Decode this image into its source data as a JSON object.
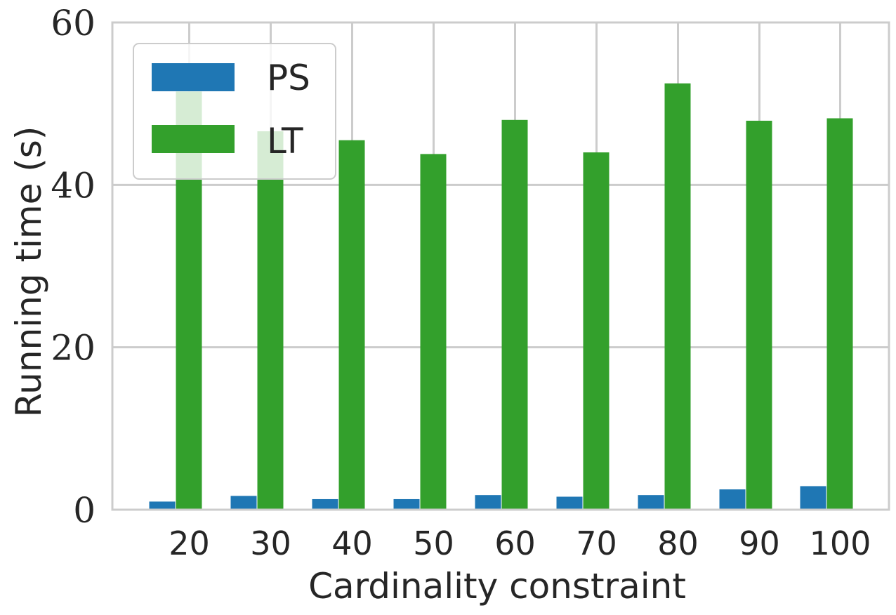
{
  "chart_data": {
    "type": "bar",
    "categories": [
      "20",
      "30",
      "40",
      "50",
      "60",
      "70",
      "80",
      "90",
      "100"
    ],
    "series": [
      {
        "name": "PS",
        "color": "#1f77b4",
        "values": [
          1.0,
          1.7,
          1.3,
          1.3,
          1.8,
          1.6,
          1.8,
          2.5,
          2.9
        ]
      },
      {
        "name": "LT",
        "color": "#33a02c",
        "values": [
          51.5,
          46.6,
          45.5,
          43.8,
          48.0,
          44.0,
          52.5,
          47.9,
          48.2
        ]
      }
    ],
    "xlabel": "Cardinality constraint",
    "ylabel": "Running time (s)",
    "yticks": [
      "0",
      "20",
      "40",
      "60"
    ],
    "ylim": [
      0,
      60
    ],
    "grid": true,
    "legend_position": "top-left"
  }
}
